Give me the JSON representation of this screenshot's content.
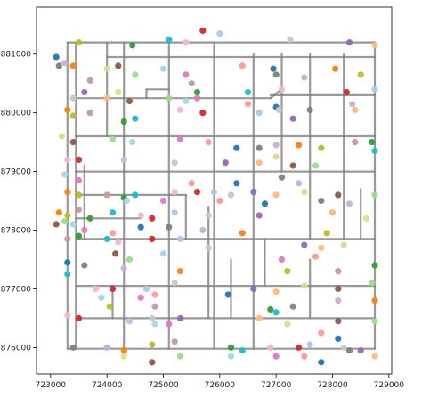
{
  "chart_data": {
    "type": "scatter",
    "title": "",
    "xlabel": "",
    "ylabel": "",
    "xlim": [
      722750,
      729050
    ],
    "ylim": [
      875550,
      881800
    ],
    "xticks": [
      723000,
      724000,
      725000,
      726000,
      727000,
      728000,
      729000
    ],
    "yticks": [
      876000,
      877000,
      878000,
      879000,
      880000,
      881000
    ],
    "grid": false,
    "legend": "none",
    "road_color": "#7f7f7f",
    "palette": [
      "#1f77b4",
      "#ff7f0e",
      "#2ca02c",
      "#d62728",
      "#9467bd",
      "#8c564b",
      "#e377c2",
      "#7f7f7f",
      "#bcbd22",
      "#17becf",
      "#aec7e8",
      "#ffbb78",
      "#98df8a",
      "#ff9896",
      "#c5b0d5",
      "#c49c94",
      "#f7b6d2",
      "#c7c7c7",
      "#dbdb8d",
      "#9edae5"
    ],
    "roads": [
      [
        [
          723300,
          881200
        ],
        [
          723300,
          875980
        ]
      ],
      [
        [
          723300,
          881200
        ],
        [
          728750,
          881200
        ]
      ],
      [
        [
          728750,
          881200
        ],
        [
          728750,
          875980
        ]
      ],
      [
        [
          723300,
          875980
        ],
        [
          728750,
          875980
        ]
      ],
      [
        [
          723450,
          881200
        ],
        [
          723450,
          875980
        ]
      ],
      [
        [
          723450,
          880250
        ],
        [
          726900,
          880250
        ]
      ],
      [
        [
          726900,
          880300
        ],
        [
          728750,
          880300
        ]
      ],
      [
        [
          723450,
          879600
        ],
        [
          728750,
          879600
        ]
      ],
      [
        [
          723450,
          879000
        ],
        [
          728750,
          879000
        ]
      ],
      [
        [
          723450,
          878600
        ],
        [
          725400,
          878600
        ]
      ],
      [
        [
          723450,
          878200
        ],
        [
          724600,
          878200
        ]
      ],
      [
        [
          723450,
          877850
        ],
        [
          728750,
          877850
        ]
      ],
      [
        [
          723450,
          877050
        ],
        [
          728750,
          877050
        ]
      ],
      [
        [
          723450,
          876500
        ],
        [
          728750,
          876500
        ]
      ],
      [
        [
          724000,
          880950
        ],
        [
          728750,
          880950
        ]
      ],
      [
        [
          724300,
          881200
        ],
        [
          724300,
          875980
        ]
      ],
      [
        [
          725100,
          881200
        ],
        [
          725100,
          875980
        ]
      ],
      [
        [
          725900,
          881200
        ],
        [
          725900,
          875980
        ]
      ],
      [
        [
          726600,
          881000
        ],
        [
          726600,
          875980
        ]
      ],
      [
        [
          727100,
          881000
        ],
        [
          727100,
          879000
        ]
      ],
      [
        [
          727100,
          880400
        ],
        [
          726900,
          880250
        ]
      ],
      [
        [
          727600,
          881000
        ],
        [
          727600,
          877850
        ]
      ],
      [
        [
          728200,
          881000
        ],
        [
          728200,
          877850
        ]
      ],
      [
        [
          724000,
          881200
        ],
        [
          724000,
          879600
        ]
      ],
      [
        [
          724700,
          880400
        ],
        [
          724700,
          880250
        ]
      ],
      [
        [
          724700,
          880400
        ],
        [
          725100,
          880400
        ]
      ],
      [
        [
          725400,
          878600
        ],
        [
          725400,
          877850
        ]
      ],
      [
        [
          725800,
          878400
        ],
        [
          725800,
          876500
        ]
      ],
      [
        [
          726200,
          877500
        ],
        [
          726200,
          876500
        ]
      ],
      [
        [
          726800,
          877850
        ],
        [
          726800,
          877050
        ]
      ],
      [
        [
          727600,
          877500
        ],
        [
          727600,
          876500
        ]
      ],
      [
        [
          723600,
          879100
        ],
        [
          723600,
          877850
        ]
      ],
      [
        [
          724100,
          877050
        ],
        [
          724100,
          876500
        ]
      ],
      [
        [
          728500,
          878700
        ],
        [
          728500,
          877850
        ]
      ]
    ],
    "points": [
      [
        723100,
        880950
      ],
      [
        723150,
        880800
      ],
      [
        723250,
        880850
      ],
      [
        723400,
        880800
      ],
      [
        723500,
        881200
      ],
      [
        723700,
        880550
      ],
      [
        724450,
        881150
      ],
      [
        725100,
        881250
      ],
      [
        725400,
        881200
      ],
      [
        725700,
        881400
      ],
      [
        726000,
        881350
      ],
      [
        727250,
        881250
      ],
      [
        728300,
        881200
      ],
      [
        728750,
        881150
      ],
      [
        724000,
        880750
      ],
      [
        724200,
        880800
      ],
      [
        724500,
        880650
      ],
      [
        725000,
        880750
      ],
      [
        725400,
        880650
      ],
      [
        726400,
        880800
      ],
      [
        726950,
        880750
      ],
      [
        727000,
        880650
      ],
      [
        727500,
        880600
      ],
      [
        728050,
        880750
      ],
      [
        728500,
        880650
      ],
      [
        725500,
        880500
      ],
      [
        725600,
        880350
      ],
      [
        726500,
        880350
      ],
      [
        727100,
        880400
      ],
      [
        728250,
        880350
      ],
      [
        728750,
        880400
      ],
      [
        723400,
        880250
      ],
      [
        723600,
        880350
      ],
      [
        724000,
        880250
      ],
      [
        724200,
        880350
      ],
      [
        724400,
        880200
      ],
      [
        725100,
        880250
      ],
      [
        725400,
        880200
      ],
      [
        725600,
        880250
      ],
      [
        726500,
        880150
      ],
      [
        727000,
        880100
      ],
      [
        727600,
        880050
      ],
      [
        728350,
        880150
      ],
      [
        723300,
        880050
      ],
      [
        723400,
        879950
      ],
      [
        723700,
        880000
      ],
      [
        724300,
        879850
      ],
      [
        724500,
        879900
      ],
      [
        725300,
        880050
      ],
      [
        725700,
        880000
      ],
      [
        726700,
        880000
      ],
      [
        727050,
        880050
      ],
      [
        727300,
        879900
      ],
      [
        728400,
        880050
      ],
      [
        723200,
        879600
      ],
      [
        723400,
        879500
      ],
      [
        724100,
        879550
      ],
      [
        724450,
        879500
      ],
      [
        725300,
        879550
      ],
      [
        725800,
        879500
      ],
      [
        726300,
        879400
      ],
      [
        726700,
        879400
      ],
      [
        727000,
        879450
      ],
      [
        727400,
        879450
      ],
      [
        727800,
        879400
      ],
      [
        728400,
        879500
      ],
      [
        728700,
        879500
      ],
      [
        728750,
        879350
      ],
      [
        723300,
        879200
      ],
      [
        723500,
        879200
      ],
      [
        724300,
        879200
      ],
      [
        725200,
        879150
      ],
      [
        726100,
        879150
      ],
      [
        726700,
        879150
      ],
      [
        727000,
        879250
      ],
      [
        727300,
        879100
      ],
      [
        727700,
        879100
      ],
      [
        723250,
        878950
      ],
      [
        723500,
        878850
      ],
      [
        725500,
        878800
      ],
      [
        726300,
        878800
      ],
      [
        727100,
        878900
      ],
      [
        727400,
        878800
      ],
      [
        723300,
        878650
      ],
      [
        723500,
        878600
      ],
      [
        724000,
        878600
      ],
      [
        724300,
        878550
      ],
      [
        724500,
        878600
      ],
      [
        725200,
        878650
      ],
      [
        725600,
        878650
      ],
      [
        725900,
        878650
      ],
      [
        726200,
        878600
      ],
      [
        726600,
        878650
      ],
      [
        727000,
        878600
      ],
      [
        727500,
        878650
      ],
      [
        728100,
        878600
      ],
      [
        728750,
        878600
      ],
      [
        724350,
        878500
      ],
      [
        725000,
        878500
      ],
      [
        726000,
        878500
      ],
      [
        726800,
        878450
      ],
      [
        727800,
        878500
      ],
      [
        728300,
        878450
      ],
      [
        723150,
        878300
      ],
      [
        723300,
        878250
      ],
      [
        723500,
        878350
      ],
      [
        723700,
        878200
      ],
      [
        724100,
        878300
      ],
      [
        724600,
        878250
      ],
      [
        724800,
        878200
      ],
      [
        725200,
        878300
      ],
      [
        725800,
        878250
      ],
      [
        726700,
        878250
      ],
      [
        728000,
        878300
      ],
      [
        728600,
        878200
      ],
      [
        723100,
        878100
      ],
      [
        723250,
        878150
      ],
      [
        723400,
        878100
      ],
      [
        723600,
        878000
      ],
      [
        724100,
        877950
      ],
      [
        724600,
        878050
      ],
      [
        725100,
        878050
      ],
      [
        725700,
        878000
      ],
      [
        726400,
        877950
      ],
      [
        727900,
        877950
      ],
      [
        723300,
        877850
      ],
      [
        723500,
        877900
      ],
      [
        724000,
        877850
      ],
      [
        724200,
        877800
      ],
      [
        724800,
        877850
      ],
      [
        725300,
        877850
      ],
      [
        725800,
        877700
      ],
      [
        727500,
        877750
      ],
      [
        727800,
        877700
      ],
      [
        728200,
        877750
      ],
      [
        724150,
        877600
      ],
      [
        724400,
        877500
      ],
      [
        725000,
        877600
      ],
      [
        727100,
        877500
      ],
      [
        727700,
        877550
      ],
      [
        723300,
        877450
      ],
      [
        723600,
        877400
      ],
      [
        724300,
        877350
      ],
      [
        725300,
        877300
      ],
      [
        727200,
        877300
      ],
      [
        728100,
        877300
      ],
      [
        728750,
        877400
      ],
      [
        723300,
        877250
      ],
      [
        723800,
        877000
      ],
      [
        724100,
        877000
      ],
      [
        724700,
        877000
      ],
      [
        725200,
        877100
      ],
      [
        726600,
        877000
      ],
      [
        727000,
        876950
      ],
      [
        727500,
        877050
      ],
      [
        728100,
        877000
      ],
      [
        728700,
        877100
      ],
      [
        723900,
        876850
      ],
      [
        724600,
        876850
      ],
      [
        724850,
        876900
      ],
      [
        726150,
        876900
      ],
      [
        727300,
        876700
      ],
      [
        728100,
        876800
      ],
      [
        728750,
        876800
      ],
      [
        724050,
        876700
      ],
      [
        724850,
        876700
      ],
      [
        726900,
        876650
      ],
      [
        727000,
        876600
      ],
      [
        723300,
        876550
      ],
      [
        723500,
        876500
      ],
      [
        724400,
        876450
      ],
      [
        724800,
        876500
      ],
      [
        725300,
        876500
      ],
      [
        726700,
        876500
      ],
      [
        727200,
        876400
      ],
      [
        728100,
        876450
      ],
      [
        728750,
        876450
      ],
      [
        724850,
        876400
      ],
      [
        725100,
        876400
      ],
      [
        727800,
        876250
      ],
      [
        728100,
        876150
      ],
      [
        723400,
        876000
      ],
      [
        724000,
        876000
      ],
      [
        724300,
        875950
      ],
      [
        724800,
        876050
      ],
      [
        725200,
        876100
      ],
      [
        726200,
        876000
      ],
      [
        726400,
        875950
      ],
      [
        726900,
        876000
      ],
      [
        727400,
        876000
      ],
      [
        727600,
        876050
      ],
      [
        728200,
        876000
      ],
      [
        728500,
        875950
      ],
      [
        728750,
        875850
      ],
      [
        724300,
        875850
      ],
      [
        724800,
        875750
      ],
      [
        725300,
        875850
      ],
      [
        726200,
        875850
      ],
      [
        727000,
        875850
      ],
      [
        727500,
        875850
      ],
      [
        727800,
        875750
      ],
      [
        728300,
        875950
      ]
    ]
  }
}
